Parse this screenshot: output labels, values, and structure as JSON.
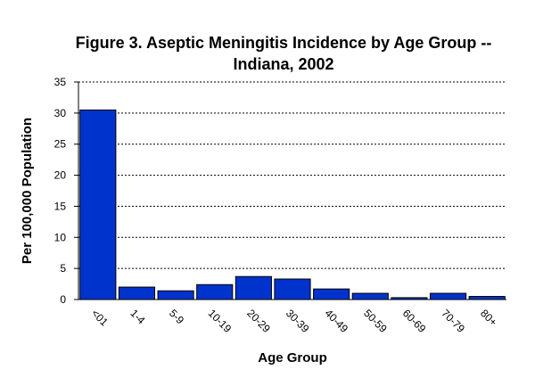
{
  "chart_data": {
    "type": "bar",
    "title": [
      "Figure 3.  Aseptic Meningitis Incidence by Age Group --",
      "Indiana, 2002"
    ],
    "x_label": "Age Group",
    "y_label": "Per 100,000 Population",
    "categories": [
      "<01",
      "1-4",
      "5-9",
      "10-19",
      "20-29",
      "30-39",
      "40-49",
      "50-59",
      "60-69",
      "70-79",
      "80+"
    ],
    "values": [
      30.5,
      2.0,
      1.4,
      2.4,
      3.7,
      3.3,
      1.7,
      1.0,
      0.3,
      1.0,
      0.5
    ],
    "color": "#0033cc",
    "ylim": [
      0,
      35
    ],
    "yticks": [
      0,
      5,
      10,
      15,
      20,
      25,
      30,
      35
    ],
    "grid": true
  }
}
